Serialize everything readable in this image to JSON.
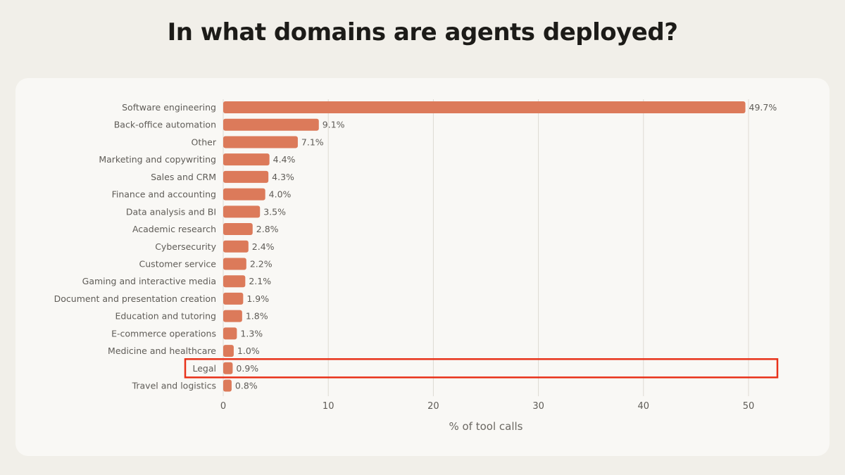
{
  "page": {
    "title": "In what domains are agents deployed?"
  },
  "chart_data": {
    "type": "bar",
    "orientation": "horizontal",
    "title": "In what domains are agents deployed?",
    "xlabel": "% of tool calls",
    "ylabel": "",
    "xlim": [
      0,
      50
    ],
    "xticks": [
      0,
      10,
      20,
      30,
      40,
      50
    ],
    "grid": "vertical",
    "categories": [
      "Software engineering",
      "Back-office automation",
      "Other",
      "Marketing and copywriting",
      "Sales and CRM",
      "Finance and accounting",
      "Data analysis and BI",
      "Academic research",
      "Cybersecurity",
      "Customer service",
      "Gaming and interactive media",
      "Document and presentation creation",
      "Education and tutoring",
      "E-commerce operations",
      "Medicine and healthcare",
      "Legal",
      "Travel and logistics"
    ],
    "values": [
      49.7,
      9.1,
      7.1,
      4.4,
      4.3,
      4.0,
      3.5,
      2.8,
      2.4,
      2.2,
      2.1,
      1.9,
      1.8,
      1.3,
      1.0,
      0.9,
      0.8
    ],
    "value_labels": [
      "49.7%",
      "9.1%",
      "7.1%",
      "4.4%",
      "4.3%",
      "4.0%",
      "3.5%",
      "2.8%",
      "2.4%",
      "2.2%",
      "2.1%",
      "1.9%",
      "1.8%",
      "1.3%",
      "1.0%",
      "0.9%",
      "0.8%"
    ],
    "highlighted_category": "Legal",
    "colors": {
      "bar": "#dc7a5a",
      "grid": "#dedad3",
      "highlight": "#e8321a",
      "label": "#5f5c57",
      "axis_title": "#6b6862"
    }
  }
}
